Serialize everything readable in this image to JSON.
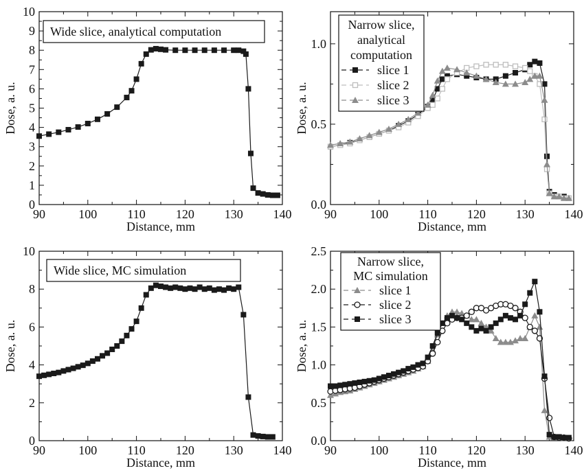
{
  "colors": {
    "black": "#1a1a1a",
    "gray": "#8c8c8c",
    "lightgray": "#bdbdbd"
  },
  "chart_data": [
    {
      "type": "line",
      "title": "",
      "legend_title": [
        "Wide slice, analytical computation"
      ],
      "xlabel": "Distance, mm",
      "ylabel": "Dose, a. u.",
      "xlim": [
        90,
        140
      ],
      "ylim": [
        0,
        10
      ],
      "xticks": [
        90,
        100,
        110,
        120,
        130,
        140
      ],
      "yticks": [
        0,
        1,
        2,
        3,
        4,
        5,
        6,
        7,
        8,
        9,
        10
      ],
      "ytick_decimals": 0,
      "legend_position": "top-left",
      "series": [
        {
          "name": "",
          "color": "black",
          "marker": "square-filled",
          "x": [
            90,
            92,
            94,
            96,
            98,
            100,
            102,
            104,
            106,
            108,
            109,
            110,
            111,
            112,
            113,
            114,
            115,
            116,
            118,
            120,
            122,
            124,
            126,
            128,
            130,
            131,
            132,
            132.5,
            133,
            133.5,
            134,
            135,
            136,
            137,
            138,
            139
          ],
          "y": [
            3.55,
            3.65,
            3.75,
            3.88,
            4.02,
            4.2,
            4.42,
            4.7,
            5.05,
            5.55,
            5.9,
            6.5,
            7.3,
            7.8,
            8.02,
            8.08,
            8.05,
            8.02,
            8.0,
            8.0,
            8.0,
            8.0,
            8.0,
            8.0,
            8.0,
            8.0,
            7.95,
            7.8,
            6.0,
            2.65,
            0.85,
            0.6,
            0.55,
            0.5,
            0.48,
            0.48
          ]
        }
      ]
    },
    {
      "type": "line",
      "title": "",
      "legend_title": [
        "Narrow slice,",
        "analytical",
        "computation"
      ],
      "xlabel": "Distance, mm",
      "ylabel": "Dose, a. u.",
      "xlim": [
        90,
        140
      ],
      "ylim": [
        0,
        1.2
      ],
      "xticks": [
        90,
        100,
        110,
        120,
        130,
        140
      ],
      "yticks": [
        0.0,
        0.5,
        1.0
      ],
      "ytick_decimals": 1,
      "legend_position": "top-left",
      "series": [
        {
          "name": "slice 1",
          "color": "black",
          "marker": "square-filled",
          "x": [
            90,
            92,
            94,
            96,
            98,
            100,
            102,
            104,
            106,
            108,
            110,
            111,
            112,
            113,
            114,
            116,
            118,
            120,
            122,
            124,
            126,
            128,
            130,
            131,
            132,
            133,
            134,
            134.5,
            135,
            136,
            137,
            138,
            139
          ],
          "y": [
            0.36,
            0.37,
            0.385,
            0.4,
            0.42,
            0.44,
            0.46,
            0.49,
            0.52,
            0.56,
            0.61,
            0.65,
            0.72,
            0.78,
            0.8,
            0.81,
            0.8,
            0.79,
            0.78,
            0.78,
            0.8,
            0.82,
            0.84,
            0.87,
            0.89,
            0.88,
            0.75,
            0.3,
            0.08,
            0.06,
            0.05,
            0.05,
            0.04
          ]
        },
        {
          "name": "slice 2",
          "color": "lightgray",
          "marker": "square-open",
          "x": [
            90,
            92,
            94,
            96,
            98,
            100,
            102,
            104,
            106,
            108,
            110,
            111,
            112,
            113,
            114,
            116,
            118,
            120,
            122,
            124,
            126,
            128,
            130,
            131,
            132,
            133,
            134,
            134.5,
            135,
            136,
            137,
            138,
            139
          ],
          "y": [
            0.36,
            0.37,
            0.38,
            0.4,
            0.42,
            0.44,
            0.46,
            0.48,
            0.51,
            0.55,
            0.6,
            0.62,
            0.66,
            0.72,
            0.78,
            0.82,
            0.85,
            0.86,
            0.87,
            0.87,
            0.87,
            0.86,
            0.85,
            0.83,
            0.8,
            0.75,
            0.53,
            0.22,
            0.07,
            0.05,
            0.05,
            0.04,
            0.04
          ]
        },
        {
          "name": "slice 3",
          "color": "gray",
          "marker": "triangle-filled",
          "x": [
            90,
            92,
            94,
            96,
            98,
            100,
            102,
            104,
            106,
            108,
            110,
            111,
            112,
            113,
            114,
            116,
            118,
            120,
            122,
            124,
            126,
            128,
            130,
            131,
            132,
            133,
            134,
            134.5,
            135,
            136,
            137,
            138,
            139
          ],
          "y": [
            0.37,
            0.38,
            0.39,
            0.41,
            0.43,
            0.45,
            0.47,
            0.5,
            0.53,
            0.57,
            0.62,
            0.68,
            0.77,
            0.83,
            0.85,
            0.84,
            0.82,
            0.8,
            0.78,
            0.76,
            0.75,
            0.75,
            0.76,
            0.78,
            0.8,
            0.8,
            0.65,
            0.25,
            0.07,
            0.05,
            0.05,
            0.04,
            0.04
          ]
        }
      ]
    },
    {
      "type": "line",
      "title": "",
      "legend_title": [
        "Wide slice, MC simulation"
      ],
      "xlabel": "Distance, mm",
      "ylabel": "Dose, a. u.",
      "xlim": [
        90,
        140
      ],
      "ylim": [
        0,
        10
      ],
      "xticks": [
        90,
        100,
        110,
        120,
        130,
        140
      ],
      "yticks": [
        0,
        2,
        4,
        6,
        8,
        10
      ],
      "ytick_decimals": 0,
      "legend_position": "top-left",
      "series": [
        {
          "name": "",
          "color": "black",
          "marker": "square-filled",
          "x": [
            90,
            91,
            92,
            93,
            94,
            95,
            96,
            97,
            98,
            99,
            100,
            101,
            102,
            103,
            104,
            105,
            106,
            107,
            108,
            109,
            110,
            111,
            112,
            113,
            114,
            115,
            116,
            117,
            118,
            119,
            120,
            121,
            122,
            123,
            124,
            125,
            126,
            127,
            128,
            129,
            130,
            131,
            132,
            133,
            134,
            135,
            136,
            137,
            138
          ],
          "y": [
            3.4,
            3.45,
            3.5,
            3.55,
            3.6,
            3.68,
            3.75,
            3.82,
            3.9,
            3.98,
            4.08,
            4.2,
            4.32,
            4.48,
            4.62,
            4.82,
            5.0,
            5.25,
            5.55,
            5.9,
            6.3,
            7.0,
            7.7,
            8.05,
            8.2,
            8.15,
            8.1,
            8.05,
            8.1,
            8.05,
            8.0,
            8.05,
            8.0,
            8.1,
            8.0,
            8.05,
            7.95,
            8.0,
            7.95,
            8.05,
            8.0,
            8.1,
            6.65,
            2.3,
            0.3,
            0.25,
            0.22,
            0.2,
            0.2
          ]
        }
      ]
    },
    {
      "type": "line",
      "title": "",
      "legend_title": [
        "Narrow slice,",
        "MC simulation"
      ],
      "xlabel": "Distance, mm",
      "ylabel": "Dose, a. u.",
      "xlim": [
        90,
        140
      ],
      "ylim": [
        0,
        2.5
      ],
      "xticks": [
        90,
        100,
        110,
        120,
        130,
        140
      ],
      "yticks": [
        0.0,
        0.5,
        1.0,
        1.5,
        2.0,
        2.5
      ],
      "ytick_decimals": 1,
      "legend_position": "top-left",
      "series": [
        {
          "name": "slice 1",
          "color": "gray",
          "marker": "triangle-filled",
          "x": [
            90,
            91,
            92,
            93,
            94,
            95,
            96,
            97,
            98,
            99,
            100,
            101,
            102,
            103,
            104,
            105,
            106,
            107,
            108,
            109,
            110,
            111,
            112,
            113,
            114,
            115,
            116,
            117,
            118,
            119,
            120,
            121,
            122,
            123,
            124,
            125,
            126,
            127,
            128,
            129,
            130,
            131,
            132,
            133,
            134,
            135,
            136,
            137,
            138,
            139
          ],
          "y": [
            0.6,
            0.62,
            0.64,
            0.65,
            0.66,
            0.68,
            0.7,
            0.72,
            0.74,
            0.76,
            0.78,
            0.8,
            0.82,
            0.84,
            0.86,
            0.88,
            0.9,
            0.92,
            0.95,
            0.98,
            1.05,
            1.2,
            1.4,
            1.55,
            1.65,
            1.7,
            1.7,
            1.68,
            1.65,
            1.6,
            1.6,
            1.55,
            1.5,
            1.45,
            1.35,
            1.3,
            1.3,
            1.3,
            1.32,
            1.35,
            1.35,
            1.5,
            1.65,
            1.5,
            0.4,
            0.05,
            0.04,
            0.04,
            0.03,
            0.03
          ]
        },
        {
          "name": "slice 2",
          "color": "black",
          "marker": "circle-open",
          "x": [
            90,
            91,
            92,
            93,
            94,
            95,
            96,
            97,
            98,
            99,
            100,
            101,
            102,
            103,
            104,
            105,
            106,
            107,
            108,
            109,
            110,
            111,
            112,
            113,
            114,
            115,
            116,
            117,
            118,
            119,
            120,
            121,
            122,
            123,
            124,
            125,
            126,
            127,
            128,
            129,
            130,
            131,
            132,
            133,
            134,
            135,
            136,
            137,
            138,
            139
          ],
          "y": [
            0.65,
            0.66,
            0.67,
            0.68,
            0.69,
            0.7,
            0.72,
            0.74,
            0.76,
            0.78,
            0.8,
            0.82,
            0.84,
            0.86,
            0.88,
            0.9,
            0.92,
            0.94,
            0.96,
            0.98,
            1.05,
            1.15,
            1.3,
            1.45,
            1.55,
            1.6,
            1.62,
            1.62,
            1.65,
            1.7,
            1.75,
            1.75,
            1.72,
            1.75,
            1.78,
            1.8,
            1.8,
            1.78,
            1.75,
            1.7,
            1.62,
            1.5,
            1.45,
            1.35,
            0.82,
            0.3,
            0.05,
            0.04,
            0.04,
            0.03
          ]
        },
        {
          "name": "slice 3",
          "color": "black",
          "marker": "square-filled",
          "x": [
            90,
            91,
            92,
            93,
            94,
            95,
            96,
            97,
            98,
            99,
            100,
            101,
            102,
            103,
            104,
            105,
            106,
            107,
            108,
            109,
            110,
            111,
            112,
            113,
            114,
            115,
            116,
            117,
            118,
            119,
            120,
            121,
            122,
            123,
            124,
            125,
            126,
            127,
            128,
            129,
            130,
            131,
            132,
            133,
            134,
            135,
            136,
            137,
            138,
            139
          ],
          "y": [
            0.72,
            0.72,
            0.73,
            0.74,
            0.75,
            0.76,
            0.77,
            0.78,
            0.79,
            0.8,
            0.82,
            0.84,
            0.86,
            0.88,
            0.9,
            0.92,
            0.95,
            0.97,
            1.0,
            1.02,
            1.1,
            1.25,
            1.42,
            1.55,
            1.62,
            1.65,
            1.62,
            1.6,
            1.55,
            1.5,
            1.45,
            1.48,
            1.45,
            1.5,
            1.55,
            1.6,
            1.65,
            1.62,
            1.6,
            1.65,
            1.8,
            1.95,
            2.1,
            1.7,
            0.85,
            0.08,
            0.05,
            0.05,
            0.04,
            0.04
          ]
        }
      ]
    }
  ]
}
